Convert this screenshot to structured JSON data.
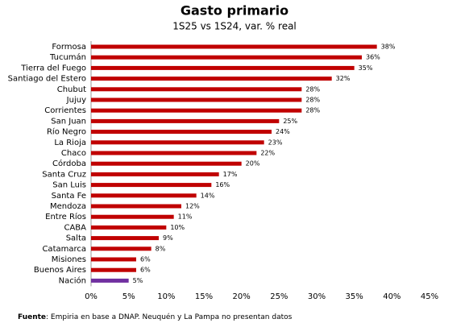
{
  "chart_data": {
    "type": "hbar",
    "title": "Gasto primario",
    "subtitle": "1S25 vs 1S24, var. % real",
    "categories": [
      "Formosa",
      "Tucumán",
      "Tierra del Fuego",
      "Santiago del Estero",
      "Chubut",
      "Jujuy",
      "Corrientes",
      "San Juan",
      "Río Negro",
      "La Rioja",
      "Chaco",
      "Córdoba",
      "Santa Cruz",
      "San Luis",
      "Santa Fe",
      "Mendoza",
      "Entre Ríos",
      "CABA",
      "Salta",
      "Catamarca",
      "Misiones",
      "Buenos Aires",
      "Nación"
    ],
    "values": [
      38,
      36,
      35,
      32,
      28,
      28,
      28,
      25,
      24,
      23,
      22,
      20,
      17,
      16,
      14,
      12,
      11,
      10,
      9,
      8,
      6,
      6,
      5
    ],
    "value_labels": [
      "38%",
      "36%",
      "35%",
      "32%",
      "28%",
      "28%",
      "28%",
      "25%",
      "24%",
      "23%",
      "22%",
      "20%",
      "17%",
      "16%",
      "14%",
      "12%",
      "11%",
      "10%",
      "9%",
      "8%",
      "6%",
      "6%",
      "5%"
    ],
    "colors": [
      "#c00000",
      "#c00000",
      "#c00000",
      "#c00000",
      "#c00000",
      "#c00000",
      "#c00000",
      "#c00000",
      "#c00000",
      "#c00000",
      "#c00000",
      "#c00000",
      "#c00000",
      "#c00000",
      "#c00000",
      "#c00000",
      "#c00000",
      "#c00000",
      "#c00000",
      "#c00000",
      "#c00000",
      "#c00000",
      "#7030a0"
    ],
    "xlim": [
      0,
      45
    ],
    "xticks": [
      {
        "value": 0,
        "label": "0%"
      },
      {
        "value": 5,
        "label": "5%"
      },
      {
        "value": 10,
        "label": "10%"
      },
      {
        "value": 15,
        "label": "15%"
      },
      {
        "value": 20,
        "label": "20%"
      },
      {
        "value": 25,
        "label": "25%"
      },
      {
        "value": 30,
        "label": "30%"
      },
      {
        "value": 35,
        "label": "35%"
      },
      {
        "value": 40,
        "label": "40%"
      },
      {
        "value": 45,
        "label": "45%"
      }
    ],
    "source_label": "Fuente",
    "source_text": ": Empiria en base a DNAP. Neuquén y La Pampa no presentan datos"
  }
}
